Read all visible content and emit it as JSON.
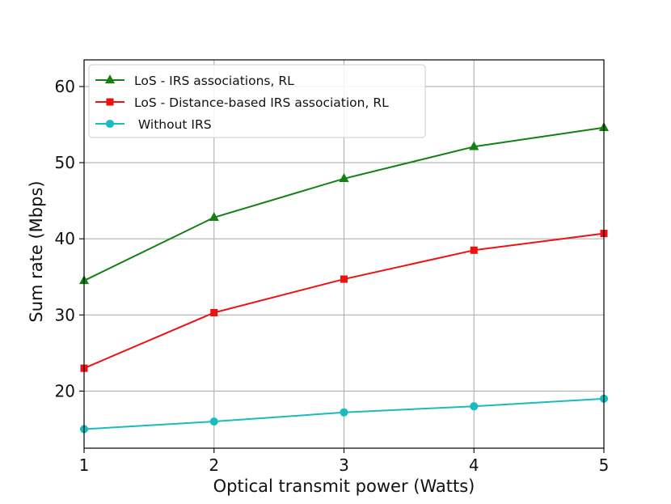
{
  "chart_data": {
    "type": "line",
    "title": "",
    "xlabel": "Optical transmit power (Watts)",
    "ylabel": "Sum rate (Mbps)",
    "x": [
      1,
      2,
      3,
      4,
      5
    ],
    "xlim": [
      1,
      5
    ],
    "ylim": [
      12.5,
      63.5
    ],
    "xticks": [
      1,
      2,
      3,
      4,
      5
    ],
    "yticks": [
      20,
      30,
      40,
      50,
      60
    ],
    "grid": true,
    "legend_position": "top-left",
    "series": [
      {
        "name": "LoS - IRS associations, RL",
        "values": [
          34.5,
          42.8,
          47.9,
          52.1,
          54.6
        ],
        "color": "#128012",
        "marker": "triangle"
      },
      {
        "name": "LoS - Distance-based IRS association, RL",
        "values": [
          23.0,
          30.3,
          34.7,
          38.5,
          40.7
        ],
        "color": "#ee1111",
        "marker": "square"
      },
      {
        "name": " Without IRS",
        "values": [
          15.0,
          16.0,
          17.2,
          18.0,
          19.0
        ],
        "color": "#19bcbc",
        "marker": "circle"
      }
    ]
  }
}
